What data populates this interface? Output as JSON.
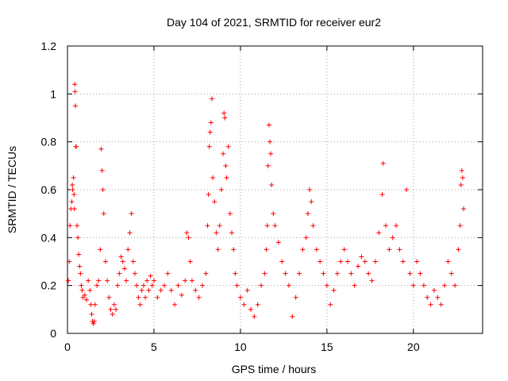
{
  "chart_data": {
    "type": "scatter",
    "title": "Day 104 of 2021, SRMTID for receiver eur2",
    "xlabel": "GPS time / hours",
    "ylabel": "SRMTID / TECUs",
    "xlim": [
      0,
      24
    ],
    "ylim": [
      0,
      1.2
    ],
    "xticks": [
      0,
      5,
      10,
      15,
      20
    ],
    "yticks": [
      0,
      0.2,
      0.4,
      0.6,
      0.8,
      1,
      1.2
    ],
    "xtick_labels": [
      "0",
      "5",
      "10",
      "15",
      "20"
    ],
    "ytick_labels": [
      "0",
      "0.2",
      "0.4",
      "0.6",
      "0.8",
      "1",
      "1.2"
    ],
    "grid": true,
    "marker": "+",
    "color": "#ff0000",
    "series": [
      {
        "name": "SRMTID",
        "points": [
          [
            0.05,
            0.22
          ],
          [
            0.1,
            0.3
          ],
          [
            0.15,
            0.45
          ],
          [
            0.2,
            0.52
          ],
          [
            0.25,
            0.55
          ],
          [
            0.28,
            0.62
          ],
          [
            0.3,
            0.6
          ],
          [
            0.35,
            0.65
          ],
          [
            0.38,
            0.58
          ],
          [
            0.4,
            0.52
          ],
          [
            0.42,
            1.04
          ],
          [
            0.44,
            1.01
          ],
          [
            0.46,
            0.95
          ],
          [
            0.48,
            0.78
          ],
          [
            0.5,
            0.78
          ],
          [
            0.55,
            0.45
          ],
          [
            0.6,
            0.4
          ],
          [
            0.65,
            0.33
          ],
          [
            0.7,
            0.28
          ],
          [
            0.75,
            0.25
          ],
          [
            0.8,
            0.2
          ],
          [
            0.85,
            0.18
          ],
          [
            0.9,
            0.15
          ],
          [
            1.0,
            0.16
          ],
          [
            1.1,
            0.14
          ],
          [
            1.2,
            0.22
          ],
          [
            1.3,
            0.18
          ],
          [
            1.35,
            0.12
          ],
          [
            1.4,
            0.08
          ],
          [
            1.45,
            0.05
          ],
          [
            1.5,
            0.04
          ],
          [
            1.55,
            0.05
          ],
          [
            1.6,
            0.12
          ],
          [
            1.7,
            0.2
          ],
          [
            1.8,
            0.22
          ],
          [
            1.9,
            0.35
          ],
          [
            1.95,
            0.77
          ],
          [
            2.0,
            0.68
          ],
          [
            2.05,
            0.6
          ],
          [
            2.1,
            0.5
          ],
          [
            2.2,
            0.3
          ],
          [
            2.3,
            0.22
          ],
          [
            2.4,
            0.15
          ],
          [
            2.5,
            0.1
          ],
          [
            2.6,
            0.08
          ],
          [
            2.7,
            0.12
          ],
          [
            2.8,
            0.1
          ],
          [
            2.9,
            0.2
          ],
          [
            3.0,
            0.25
          ],
          [
            3.1,
            0.32
          ],
          [
            3.2,
            0.3
          ],
          [
            3.3,
            0.27
          ],
          [
            3.4,
            0.22
          ],
          [
            3.5,
            0.35
          ],
          [
            3.6,
            0.42
          ],
          [
            3.7,
            0.5
          ],
          [
            3.8,
            0.3
          ],
          [
            3.9,
            0.25
          ],
          [
            4.0,
            0.2
          ],
          [
            4.1,
            0.15
          ],
          [
            4.2,
            0.12
          ],
          [
            4.3,
            0.18
          ],
          [
            4.4,
            0.2
          ],
          [
            4.5,
            0.15
          ],
          [
            4.6,
            0.22
          ],
          [
            4.7,
            0.18
          ],
          [
            4.8,
            0.24
          ],
          [
            4.9,
            0.2
          ],
          [
            5.0,
            0.22
          ],
          [
            5.2,
            0.15
          ],
          [
            5.4,
            0.18
          ],
          [
            5.6,
            0.2
          ],
          [
            5.8,
            0.25
          ],
          [
            6.0,
            0.18
          ],
          [
            6.2,
            0.12
          ],
          [
            6.4,
            0.2
          ],
          [
            6.6,
            0.16
          ],
          [
            6.8,
            0.22
          ],
          [
            6.9,
            0.42
          ],
          [
            7.0,
            0.4
          ],
          [
            7.1,
            0.3
          ],
          [
            7.2,
            0.22
          ],
          [
            7.4,
            0.18
          ],
          [
            7.6,
            0.15
          ],
          [
            7.8,
            0.2
          ],
          [
            8.0,
            0.25
          ],
          [
            8.1,
            0.45
          ],
          [
            8.15,
            0.58
          ],
          [
            8.2,
            0.78
          ],
          [
            8.25,
            0.84
          ],
          [
            8.3,
            0.88
          ],
          [
            8.35,
            0.98
          ],
          [
            8.4,
            0.65
          ],
          [
            8.5,
            0.55
          ],
          [
            8.6,
            0.42
          ],
          [
            8.7,
            0.35
          ],
          [
            8.8,
            0.45
          ],
          [
            8.9,
            0.6
          ],
          [
            9.0,
            0.75
          ],
          [
            9.05,
            0.92
          ],
          [
            9.1,
            0.9
          ],
          [
            9.15,
            0.7
          ],
          [
            9.2,
            0.65
          ],
          [
            9.3,
            0.78
          ],
          [
            9.4,
            0.5
          ],
          [
            9.5,
            0.42
          ],
          [
            9.6,
            0.35
          ],
          [
            9.7,
            0.25
          ],
          [
            9.8,
            0.2
          ],
          [
            10.0,
            0.15
          ],
          [
            10.2,
            0.12
          ],
          [
            10.4,
            0.18
          ],
          [
            10.6,
            0.1
          ],
          [
            10.8,
            0.07
          ],
          [
            11.0,
            0.12
          ],
          [
            11.2,
            0.2
          ],
          [
            11.4,
            0.25
          ],
          [
            11.5,
            0.35
          ],
          [
            11.55,
            0.45
          ],
          [
            11.6,
            0.7
          ],
          [
            11.65,
            0.87
          ],
          [
            11.7,
            0.8
          ],
          [
            11.75,
            0.75
          ],
          [
            11.8,
            0.62
          ],
          [
            11.9,
            0.5
          ],
          [
            12.0,
            0.45
          ],
          [
            12.2,
            0.38
          ],
          [
            12.4,
            0.3
          ],
          [
            12.6,
            0.25
          ],
          [
            12.8,
            0.2
          ],
          [
            13.0,
            0.07
          ],
          [
            13.2,
            0.15
          ],
          [
            13.4,
            0.25
          ],
          [
            13.6,
            0.35
          ],
          [
            13.8,
            0.4
          ],
          [
            13.9,
            0.5
          ],
          [
            14.0,
            0.6
          ],
          [
            14.1,
            0.55
          ],
          [
            14.2,
            0.45
          ],
          [
            14.4,
            0.35
          ],
          [
            14.6,
            0.3
          ],
          [
            14.8,
            0.25
          ],
          [
            15.0,
            0.2
          ],
          [
            15.2,
            0.12
          ],
          [
            15.4,
            0.18
          ],
          [
            15.6,
            0.25
          ],
          [
            15.8,
            0.3
          ],
          [
            16.0,
            0.35
          ],
          [
            16.2,
            0.3
          ],
          [
            16.4,
            0.25
          ],
          [
            16.6,
            0.2
          ],
          [
            16.8,
            0.28
          ],
          [
            17.0,
            0.32
          ],
          [
            17.2,
            0.3
          ],
          [
            17.4,
            0.25
          ],
          [
            17.6,
            0.22
          ],
          [
            17.8,
            0.3
          ],
          [
            18.0,
            0.42
          ],
          [
            18.2,
            0.58
          ],
          [
            18.25,
            0.71
          ],
          [
            18.4,
            0.45
          ],
          [
            18.6,
            0.35
          ],
          [
            18.8,
            0.4
          ],
          [
            19.0,
            0.45
          ],
          [
            19.2,
            0.35
          ],
          [
            19.4,
            0.3
          ],
          [
            19.6,
            0.6
          ],
          [
            19.8,
            0.25
          ],
          [
            20.0,
            0.2
          ],
          [
            20.2,
            0.3
          ],
          [
            20.4,
            0.25
          ],
          [
            20.6,
            0.2
          ],
          [
            20.8,
            0.15
          ],
          [
            21.0,
            0.12
          ],
          [
            21.2,
            0.18
          ],
          [
            21.4,
            0.15
          ],
          [
            21.6,
            0.12
          ],
          [
            21.8,
            0.2
          ],
          [
            22.0,
            0.3
          ],
          [
            22.2,
            0.25
          ],
          [
            22.4,
            0.2
          ],
          [
            22.6,
            0.35
          ],
          [
            22.7,
            0.45
          ],
          [
            22.75,
            0.62
          ],
          [
            22.8,
            0.68
          ],
          [
            22.85,
            0.65
          ],
          [
            22.9,
            0.52
          ]
        ]
      }
    ]
  }
}
